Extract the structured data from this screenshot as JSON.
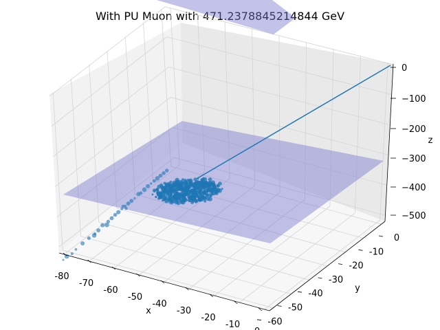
{
  "chart_data": {
    "type": "scatter3d",
    "title": "With PU Muon with 471.2378845214844 GeV",
    "xlabel": "x",
    "ylabel": "y",
    "zlabel": "z",
    "xlim": [
      -82,
      2
    ],
    "ylim": [
      -62,
      2
    ],
    "zlim": [
      -520,
      2
    ],
    "xticks": [
      -80,
      -70,
      -60,
      -50,
      -40,
      -30,
      -20,
      -10,
      0
    ],
    "yticks": [
      -60,
      -50,
      -40,
      -30,
      -20,
      -10,
      0
    ],
    "zticks": [
      -500,
      -400,
      -300,
      -200,
      -100,
      0
    ],
    "grid": true,
    "colors": {
      "points": "#1f77b4",
      "track": "#1f77b4",
      "plane": "#7b7bd0",
      "pane": "#f2f2f2",
      "grid": "#d4d4d4"
    },
    "series": [
      {
        "type": "line",
        "x": [
          -49,
          0
        ],
        "y": [
          -28,
          0
        ],
        "z": [
          -400,
          0
        ]
      },
      {
        "type": "plane",
        "z": -400
      },
      {
        "type": "plane",
        "z": 0
      },
      {
        "type": "scatter",
        "points": [
          [
            -80,
            -54,
            -400
          ],
          [
            -79,
            -52,
            -400
          ],
          [
            -77,
            -53,
            -400
          ],
          [
            -76,
            -50,
            -400
          ],
          [
            -74,
            -47,
            -400
          ],
          [
            -72,
            -45,
            -400
          ],
          [
            -70,
            -44,
            -400
          ],
          [
            -69,
            -42,
            -400
          ],
          [
            -68,
            -38,
            -400
          ],
          [
            -66,
            -38,
            -400
          ],
          [
            -65,
            -36,
            -400
          ],
          [
            -64,
            -34,
            -400
          ],
          [
            -63,
            -33,
            -400
          ],
          [
            -62,
            -31,
            -400
          ],
          [
            -61,
            -30,
            -400
          ],
          [
            -60,
            -29,
            -400
          ],
          [
            -59,
            -28,
            -400
          ],
          [
            -58,
            -27,
            -400
          ],
          [
            -57,
            -24,
            -400
          ],
          [
            -56,
            -25,
            -400
          ],
          [
            -55,
            -23,
            -400
          ],
          [
            -54,
            -21,
            -400
          ],
          [
            -53,
            -20,
            -400
          ],
          [
            -52,
            -19,
            -400
          ],
          [
            -51,
            -18,
            -400
          ],
          [
            -50,
            -17,
            -400
          ],
          [
            -49,
            -16,
            -400
          ],
          [
            -48,
            -15,
            -400
          ],
          [
            -70,
            -46,
            -400
          ],
          [
            -66,
            -42,
            -400
          ],
          [
            -60,
            -35,
            -400
          ],
          [
            -62,
            -28,
            -400
          ]
        ]
      },
      {
        "type": "scatter-cluster",
        "count": 520,
        "x_range": [
          -58,
          -40
        ],
        "y_range": [
          -35,
          -18
        ],
        "z": -400
      }
    ]
  }
}
